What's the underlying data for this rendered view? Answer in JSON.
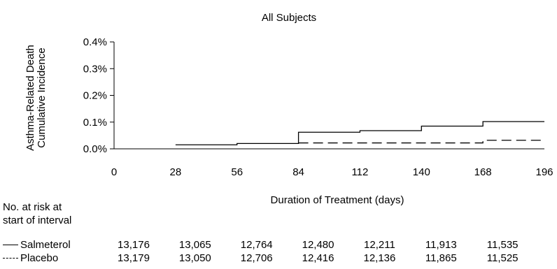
{
  "chart_data": {
    "type": "line",
    "title": "All Subjects",
    "xlabel": "Duration of Treatment (days)",
    "ylabel_lines": [
      "Asthma-Related Death",
      "Cumulative Incidence"
    ],
    "xlim": [
      0,
      196
    ],
    "ylim": [
      0,
      0.4
    ],
    "x_ticks": [
      "0",
      "28",
      "56",
      "84",
      "112",
      "140",
      "168",
      "196"
    ],
    "x_tick_values": [
      0,
      28,
      56,
      84,
      112,
      140,
      168,
      196
    ],
    "y_ticks": [
      "0.0%",
      "0.1%",
      "0.2%",
      "0.3%",
      "0.4%"
    ],
    "y_tick_values": [
      0,
      0.1,
      0.2,
      0.3,
      0.4
    ],
    "step": true,
    "grid": false,
    "series": [
      {
        "name": "Salmeterol",
        "line_style": "solid",
        "color": "#000000",
        "x": [
          28,
          56,
          84,
          112,
          140,
          168,
          196
        ],
        "y": [
          0.015,
          0.02,
          0.062,
          0.068,
          0.085,
          0.102,
          0.102
        ]
      },
      {
        "name": "Placebo",
        "line_style": "dashed",
        "color": "#000000",
        "x": [
          84,
          168,
          196
        ],
        "y": [
          0.022,
          0.032,
          0.032
        ]
      }
    ]
  },
  "risk_table": {
    "heading_line1": "No. at risk at",
    "heading_line2": "start of interval",
    "rows": [
      {
        "name": "Salmeterol",
        "style": "solid",
        "values": [
          "13,176",
          "13,065",
          "12,764",
          "12,480",
          "12,211",
          "11,913",
          "11,535"
        ]
      },
      {
        "name": "Placebo",
        "style": "dashed",
        "values": [
          "13,179",
          "13,050",
          "12,706",
          "12,416",
          "12,136",
          "11,865",
          "11,525"
        ]
      }
    ]
  }
}
